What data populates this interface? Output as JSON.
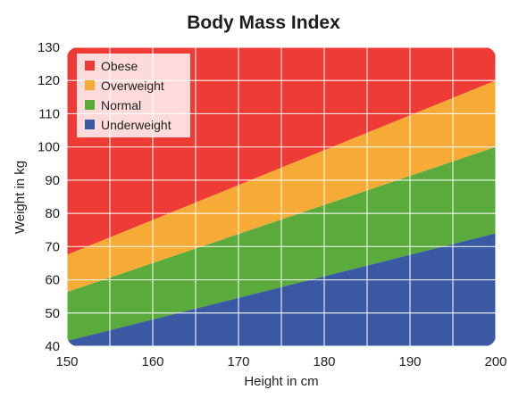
{
  "chart_data": {
    "type": "area",
    "title": "Body Mass Index",
    "xlabel": "Height in cm",
    "ylabel": "Weight in kg",
    "xlim": [
      150,
      200
    ],
    "ylim": [
      40,
      130
    ],
    "xticks": [
      150,
      160,
      170,
      180,
      190,
      200
    ],
    "yticks": [
      40,
      50,
      60,
      70,
      80,
      90,
      100,
      110,
      120,
      130
    ],
    "grid": true,
    "legend_position": "top-left",
    "series": [
      {
        "name": "Obese",
        "color": "#ef3b36",
        "lower": [
          [
            150,
            67.5
          ],
          [
            200,
            120
          ]
        ],
        "upper": [
          [
            150,
            130
          ],
          [
            200,
            130
          ]
        ]
      },
      {
        "name": "Overweight",
        "color": "#f5ab35",
        "lower": [
          [
            150,
            56.3
          ],
          [
            200,
            100
          ]
        ],
        "upper": [
          [
            150,
            67.5
          ],
          [
            200,
            120
          ]
        ]
      },
      {
        "name": "Normal",
        "color": "#5aab3c",
        "lower": [
          [
            150,
            41.6
          ],
          [
            200,
            74
          ]
        ],
        "upper": [
          [
            150,
            56.3
          ],
          [
            200,
            100
          ]
        ]
      },
      {
        "name": "Underweight",
        "color": "#3b59a3",
        "lower": [
          [
            150,
            40
          ],
          [
            200,
            40
          ]
        ],
        "upper": [
          [
            150,
            41.6
          ],
          [
            200,
            74
          ]
        ]
      }
    ]
  }
}
